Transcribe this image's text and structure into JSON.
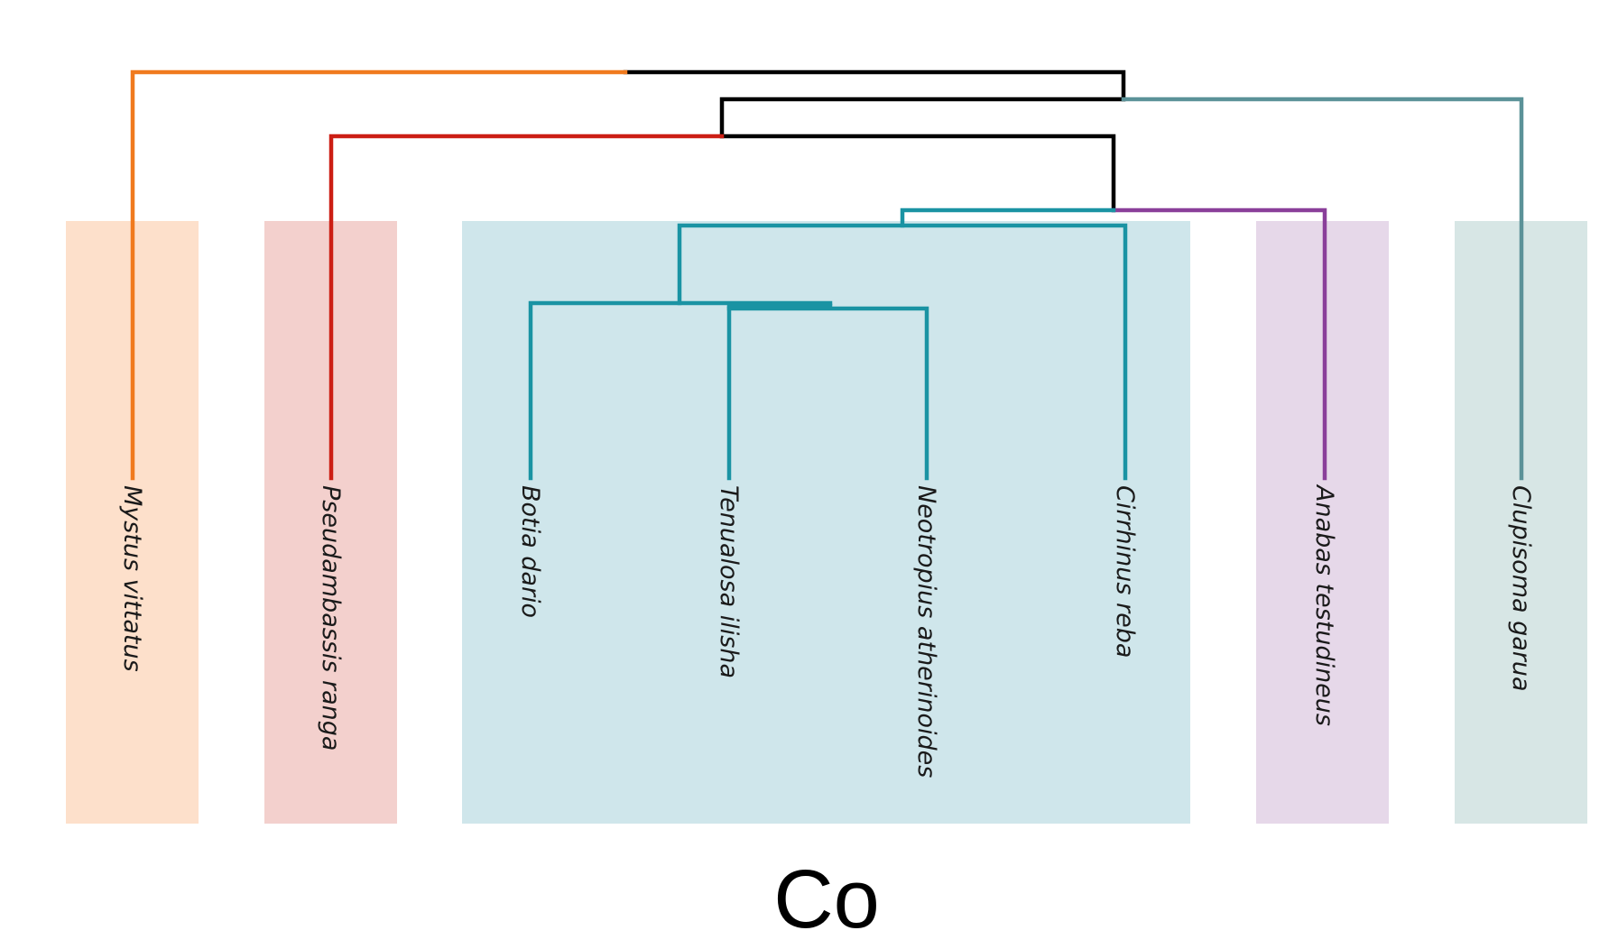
{
  "title": "Co",
  "groups": [
    {
      "id": "mystus",
      "color": "#fde0cb"
    },
    {
      "id": "pseudambassis",
      "color": "#f3d0cd"
    },
    {
      "id": "cyprinid-clade",
      "color": "#cfe6eb"
    },
    {
      "id": "anabas",
      "color": "#e6d8e9"
    },
    {
      "id": "clupisoma",
      "color": "#d7e6e5"
    }
  ],
  "taxa": [
    {
      "name": "Mystus vittatus",
      "group": "mystus"
    },
    {
      "name": "Pseudambassis ranga",
      "group": "pseudambassis"
    },
    {
      "name": "Botia dario",
      "group": "cyprinid-clade"
    },
    {
      "name": "Tenualosa ilisha",
      "group": "cyprinid-clade"
    },
    {
      "name": "Neotropius atherinoides",
      "group": "cyprinid-clade"
    },
    {
      "name": "Cirrhinus reba",
      "group": "cyprinid-clade"
    },
    {
      "name": "Anabas testudineus",
      "group": "anabas"
    },
    {
      "name": "Clupisoma garua",
      "group": "clupisoma"
    }
  ],
  "branch_colors": {
    "root": "#000000",
    "mystus": "#f07a1e",
    "pseudambassis": "#cc1e14",
    "cyprinid": "#1a93a3",
    "anabas": "#8a3f9a",
    "clupisoma": "#5b9298"
  },
  "tree": "((Mystus vittatus,((Pseudambassis ranga,(((Botia dario,(Tenualosa ilisha,Neotropius atherinoides)),Cirrhinus reba),Anabas testudineus)))),Clupisoma garua)"
}
